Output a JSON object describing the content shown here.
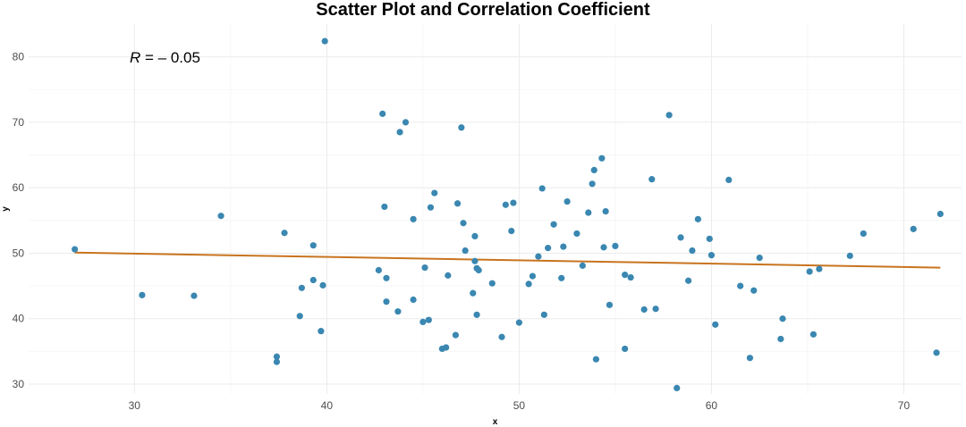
{
  "chart_data": {
    "type": "scatter",
    "title": "Scatter Plot and Correlation Coefficient",
    "xlabel": "x",
    "ylabel": "y",
    "xlim": [
      24.5,
      73.0
    ],
    "ylim": [
      28.5,
      85.0
    ],
    "x_ticks": [
      30,
      40,
      50,
      60,
      70
    ],
    "y_ticks": [
      30,
      40,
      50,
      60,
      70,
      80
    ],
    "grid": true,
    "legend": "none",
    "annotation": {
      "italic": "R",
      "rest": " = – 0.05"
    },
    "colors": {
      "points": "#3a87b1",
      "fit_line": "#c8741f"
    },
    "fit_line": {
      "x": [
        26.9,
        71.9
      ],
      "y": [
        50.1,
        47.8
      ]
    },
    "points": [
      {
        "x": 26.9,
        "y": 50.6
      },
      {
        "x": 30.4,
        "y": 43.6
      },
      {
        "x": 33.1,
        "y": 43.5
      },
      {
        "x": 34.5,
        "y": 55.7
      },
      {
        "x": 37.4,
        "y": 34.2
      },
      {
        "x": 37.4,
        "y": 33.4
      },
      {
        "x": 37.8,
        "y": 53.1
      },
      {
        "x": 38.6,
        "y": 40.4
      },
      {
        "x": 38.7,
        "y": 44.7
      },
      {
        "x": 39.3,
        "y": 45.9
      },
      {
        "x": 39.3,
        "y": 51.2
      },
      {
        "x": 39.7,
        "y": 38.1
      },
      {
        "x": 39.8,
        "y": 45.1
      },
      {
        "x": 39.9,
        "y": 82.4
      },
      {
        "x": 42.7,
        "y": 47.4
      },
      {
        "x": 42.9,
        "y": 71.3
      },
      {
        "x": 43.0,
        "y": 57.1
      },
      {
        "x": 43.1,
        "y": 46.2
      },
      {
        "x": 43.1,
        "y": 42.6
      },
      {
        "x": 43.7,
        "y": 41.1
      },
      {
        "x": 43.8,
        "y": 68.5
      },
      {
        "x": 44.1,
        "y": 70.0
      },
      {
        "x": 44.5,
        "y": 55.2
      },
      {
        "x": 44.5,
        "y": 42.9
      },
      {
        "x": 45.0,
        "y": 39.5
      },
      {
        "x": 45.1,
        "y": 47.8
      },
      {
        "x": 45.3,
        "y": 39.8
      },
      {
        "x": 45.4,
        "y": 57.0
      },
      {
        "x": 45.6,
        "y": 59.2
      },
      {
        "x": 46.0,
        "y": 35.4
      },
      {
        "x": 46.2,
        "y": 35.6
      },
      {
        "x": 46.3,
        "y": 46.6
      },
      {
        "x": 46.7,
        "y": 37.5
      },
      {
        "x": 46.8,
        "y": 57.6
      },
      {
        "x": 47.0,
        "y": 69.2
      },
      {
        "x": 47.1,
        "y": 54.6
      },
      {
        "x": 47.2,
        "y": 50.4
      },
      {
        "x": 47.6,
        "y": 43.9
      },
      {
        "x": 47.7,
        "y": 52.6
      },
      {
        "x": 47.7,
        "y": 48.8
      },
      {
        "x": 47.8,
        "y": 47.7
      },
      {
        "x": 47.8,
        "y": 40.6
      },
      {
        "x": 47.9,
        "y": 47.4
      },
      {
        "x": 48.6,
        "y": 45.4
      },
      {
        "x": 49.1,
        "y": 37.2
      },
      {
        "x": 49.3,
        "y": 57.4
      },
      {
        "x": 49.6,
        "y": 53.4
      },
      {
        "x": 49.7,
        "y": 57.7
      },
      {
        "x": 50.0,
        "y": 39.4
      },
      {
        "x": 50.5,
        "y": 45.3
      },
      {
        "x": 50.7,
        "y": 46.5
      },
      {
        "x": 51.0,
        "y": 49.5
      },
      {
        "x": 51.2,
        "y": 59.9
      },
      {
        "x": 51.3,
        "y": 40.6
      },
      {
        "x": 51.5,
        "y": 50.8
      },
      {
        "x": 51.8,
        "y": 54.4
      },
      {
        "x": 52.2,
        "y": 46.2
      },
      {
        "x": 52.3,
        "y": 51.0
      },
      {
        "x": 52.5,
        "y": 57.9
      },
      {
        "x": 53.0,
        "y": 53.0
      },
      {
        "x": 53.3,
        "y": 48.1
      },
      {
        "x": 53.6,
        "y": 56.2
      },
      {
        "x": 53.8,
        "y": 60.6
      },
      {
        "x": 53.9,
        "y": 62.7
      },
      {
        "x": 54.0,
        "y": 33.8
      },
      {
        "x": 54.3,
        "y": 64.5
      },
      {
        "x": 54.4,
        "y": 50.9
      },
      {
        "x": 54.5,
        "y": 56.4
      },
      {
        "x": 54.7,
        "y": 42.1
      },
      {
        "x": 55.0,
        "y": 51.1
      },
      {
        "x": 55.5,
        "y": 46.7
      },
      {
        "x": 55.5,
        "y": 35.4
      },
      {
        "x": 55.8,
        "y": 46.3
      },
      {
        "x": 56.5,
        "y": 41.4
      },
      {
        "x": 56.9,
        "y": 61.3
      },
      {
        "x": 57.1,
        "y": 41.5
      },
      {
        "x": 57.8,
        "y": 71.1
      },
      {
        "x": 58.2,
        "y": 29.4
      },
      {
        "x": 58.4,
        "y": 52.4
      },
      {
        "x": 58.8,
        "y": 45.8
      },
      {
        "x": 59.0,
        "y": 50.4
      },
      {
        "x": 59.3,
        "y": 55.2
      },
      {
        "x": 59.9,
        "y": 52.2
      },
      {
        "x": 60.0,
        "y": 49.7
      },
      {
        "x": 60.2,
        "y": 39.1
      },
      {
        "x": 60.9,
        "y": 61.2
      },
      {
        "x": 61.5,
        "y": 45.0
      },
      {
        "x": 62.0,
        "y": 34.0
      },
      {
        "x": 62.2,
        "y": 44.3
      },
      {
        "x": 62.5,
        "y": 49.3
      },
      {
        "x": 63.6,
        "y": 36.9
      },
      {
        "x": 63.7,
        "y": 40.0
      },
      {
        "x": 65.1,
        "y": 47.2
      },
      {
        "x": 65.3,
        "y": 37.6
      },
      {
        "x": 65.6,
        "y": 47.6
      },
      {
        "x": 67.2,
        "y": 49.6
      },
      {
        "x": 67.9,
        "y": 53.0
      },
      {
        "x": 70.5,
        "y": 53.7
      },
      {
        "x": 71.7,
        "y": 34.8
      },
      {
        "x": 71.9,
        "y": 56.0
      }
    ]
  }
}
